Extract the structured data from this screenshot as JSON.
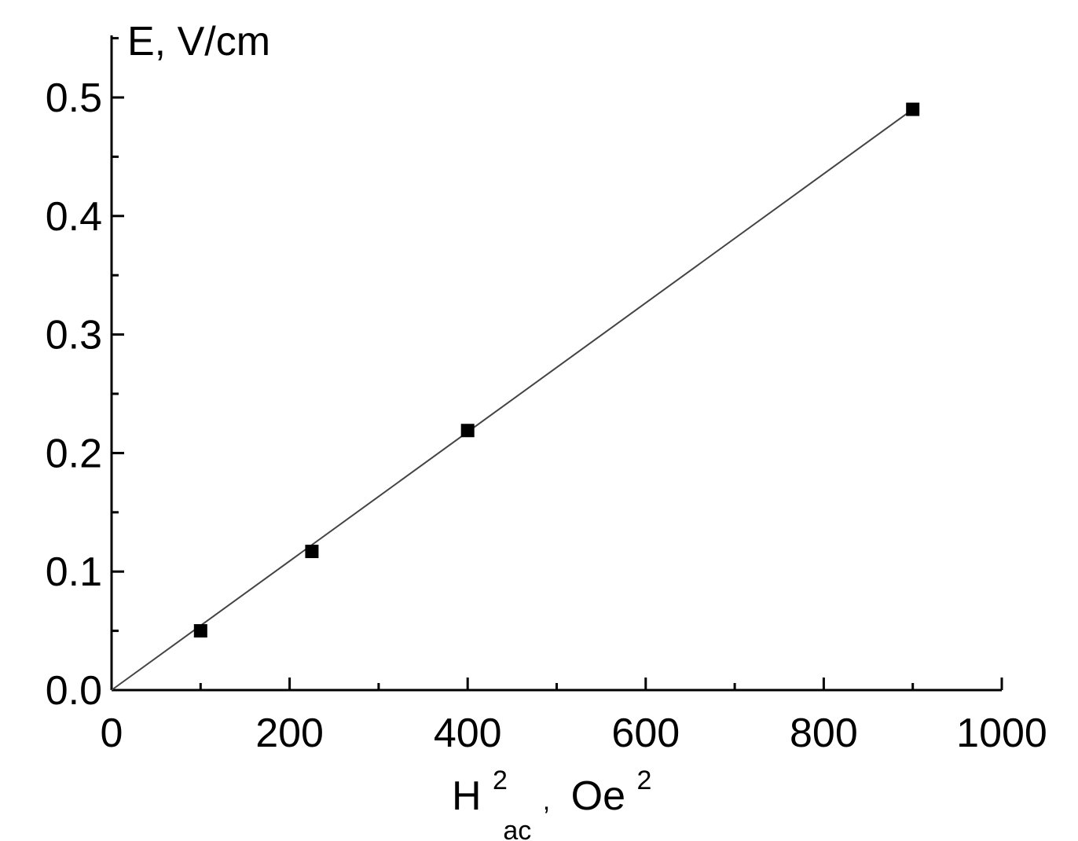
{
  "chart_data": {
    "type": "scatter",
    "ylabel": "E, V/cm",
    "xlabel": {
      "base": "H",
      "superscript": "2",
      "subscript": "ac",
      "separator": ",",
      "unit_base": "Oe",
      "unit_superscript": "2"
    },
    "xlim": [
      0,
      1000
    ],
    "ylim": [
      0,
      0.55
    ],
    "x_ticks": [
      "0",
      "200",
      "400",
      "600",
      "800",
      "1000"
    ],
    "x_tick_values": [
      0,
      200,
      400,
      600,
      800,
      1000
    ],
    "y_ticks": [
      "0.0",
      "0.1",
      "0.2",
      "0.3",
      "0.4",
      "0.5"
    ],
    "y_tick_values": [
      0.0,
      0.1,
      0.2,
      0.3,
      0.4,
      0.5
    ],
    "x_minor_step": 100,
    "y_minor_step": 0.05,
    "grid": false,
    "series": [
      {
        "marker": "square",
        "x": [
          100,
          225,
          400,
          900
        ],
        "y": [
          0.05,
          0.117,
          0.219,
          0.49
        ]
      }
    ],
    "fit_line": {
      "x": [
        0,
        900
      ],
      "y": [
        0.0,
        0.49
      ]
    }
  },
  "colors": {
    "axis": "#000000",
    "marker": "#000000",
    "line": "#444444"
  }
}
